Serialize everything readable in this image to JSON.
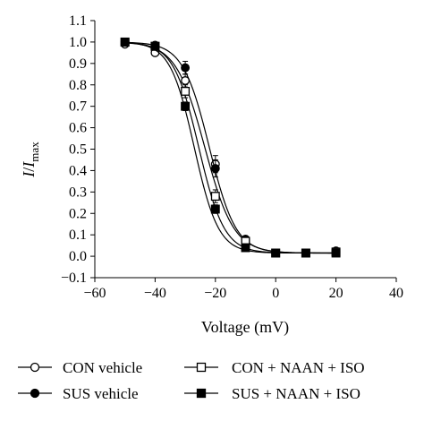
{
  "chart_data": {
    "type": "scatter",
    "xlabel": "Voltage (mV)",
    "ylabel_main": "I",
    "ylabel_sep": "/",
    "ylabel_I": "I",
    "ylabel_sub": "max",
    "xlim": [
      -60,
      40
    ],
    "ylim": [
      -0.1,
      1.1
    ],
    "xticks": [
      -60,
      -40,
      -20,
      0,
      20,
      40
    ],
    "xtick_labels": [
      "−60",
      "−40",
      "−20",
      "0",
      "20",
      "40"
    ],
    "yticks": [
      -0.1,
      0.0,
      0.1,
      0.2,
      0.3,
      0.4,
      0.5,
      0.6,
      0.7,
      0.8,
      0.9,
      1.0,
      1.1
    ],
    "ytick_labels": [
      "−0.1",
      "0.0",
      "0.1",
      "0.2",
      "0.3",
      "0.4",
      "0.5",
      "0.6",
      "0.7",
      "0.8",
      "0.9",
      "1.0",
      "1.1"
    ],
    "grid": false,
    "legend_position": "bottom",
    "series": [
      {
        "name": "CON vehicle",
        "marker": "circle-open",
        "x": [
          -50,
          -40,
          -30,
          -20,
          -10,
          0,
          10,
          20
        ],
        "y": [
          0.99,
          0.95,
          0.82,
          0.43,
          0.07,
          0.015,
          0.015,
          0.02
        ],
        "err": [
          0.01,
          0.01,
          0.03,
          0.04,
          0.01,
          0.01,
          0.01,
          0.01
        ],
        "fit": {
          "v_half": -23.5,
          "k": 4.8,
          "top": 1.0,
          "bottom": 0.015
        }
      },
      {
        "name": "SUS vehicle",
        "marker": "circle-filled",
        "x": [
          -50,
          -40,
          -30,
          -20,
          -10,
          0,
          10,
          20
        ],
        "y": [
          1.0,
          0.985,
          0.88,
          0.41,
          0.08,
          0.015,
          0.015,
          0.025
        ],
        "err": [
          0.01,
          0.01,
          0.03,
          0.04,
          0.01,
          0.01,
          0.01,
          0.01
        ],
        "fit": {
          "v_half": -22.0,
          "k": 4.4,
          "top": 1.0,
          "bottom": 0.015
        }
      },
      {
        "name": "CON + NAAN + ISO",
        "marker": "square-open",
        "x": [
          -50,
          -40,
          -30,
          -20,
          -10,
          0,
          10,
          20
        ],
        "y": [
          1.0,
          0.98,
          0.77,
          0.28,
          0.07,
          0.015,
          0.015,
          0.02
        ],
        "err": [
          0.01,
          0.01,
          0.03,
          0.03,
          0.01,
          0.01,
          0.01,
          0.01
        ],
        "fit": {
          "v_half": -25.5,
          "k": 4.2,
          "top": 1.0,
          "bottom": 0.015
        }
      },
      {
        "name": "SUS + NAAN + ISO",
        "marker": "square-filled",
        "x": [
          -50,
          -40,
          -30,
          -20,
          -10,
          0,
          10,
          20
        ],
        "y": [
          1.0,
          0.98,
          0.7,
          0.22,
          0.04,
          0.015,
          0.015,
          0.015
        ],
        "err": [
          0.01,
          0.01,
          0.02,
          0.02,
          0.01,
          0.01,
          0.01,
          0.01
        ],
        "fit": {
          "v_half": -27.0,
          "k": 4.0,
          "top": 1.0,
          "bottom": 0.015
        }
      }
    ]
  }
}
